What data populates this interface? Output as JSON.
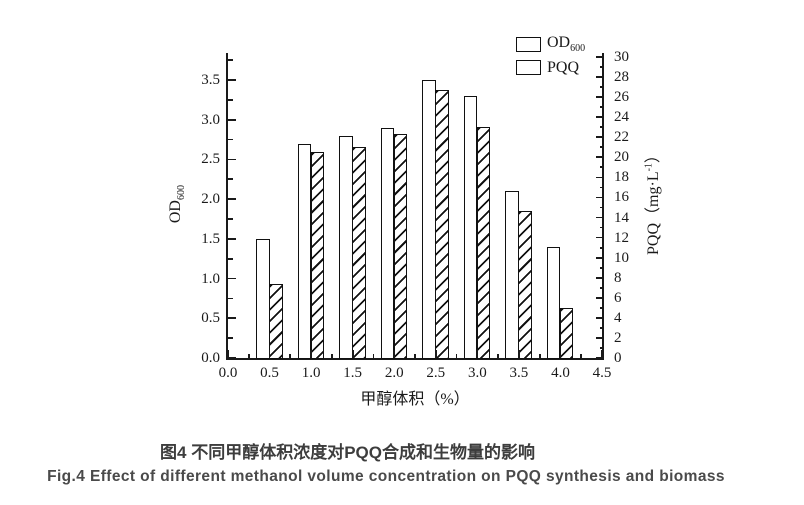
{
  "figure": {
    "caption_zh": "图4 不同甲醇体积浓度对PQQ合成和生物量的影响",
    "caption_en": "Fig.4 Effect of different methanol volume concentration on PQQ synthesis and biomass"
  },
  "legend": {
    "od_label": "OD",
    "od_sub": "600",
    "pqq_label": "PQQ"
  },
  "chart_text": {
    "left_axis_label": {
      "prefix": "OD",
      "sub": "600"
    },
    "right_axis_label": {
      "prefix": "PQQ（mg·L",
      "sup": "-1",
      "suffix": "）"
    }
  },
  "chart_data": {
    "type": "bar",
    "title": "",
    "xlabel": "甲醇体积（%）",
    "ylabel_left": "OD600",
    "ylabel_right": "PQQ（mg·L-1）",
    "categories": [
      0.5,
      1.0,
      1.5,
      2.0,
      2.5,
      3.0,
      3.5,
      4.0
    ],
    "series": [
      {
        "name": "OD600",
        "axis": "left",
        "style": "open",
        "values": [
          1.5,
          2.7,
          2.8,
          2.9,
          3.5,
          3.3,
          2.1,
          1.4
        ]
      },
      {
        "name": "PQQ",
        "axis": "right",
        "style": "hatch",
        "values": [
          7.4,
          20.5,
          21.0,
          22.3,
          26.7,
          23.0,
          14.7,
          5.0
        ]
      }
    ],
    "x_axis": {
      "min": 0,
      "max": 4.5,
      "major": 0.5,
      "minor": 0.25,
      "label_decimals": 1
    },
    "left_axis": {
      "min": 0,
      "max": 3.5,
      "major": 0.5,
      "minor": 0.25,
      "scale_max": 3.79,
      "label_decimals": 1
    },
    "right_axis": {
      "min": 0,
      "max": 30,
      "major": 2,
      "minor": 1,
      "scale_max": 30,
      "label_decimals": 0
    },
    "legend_position": "top-right",
    "grid": false,
    "colors": {
      "ink": "#1a1a1a",
      "bar_fill": "#ffffff",
      "caption": "#4a4a4a"
    }
  }
}
